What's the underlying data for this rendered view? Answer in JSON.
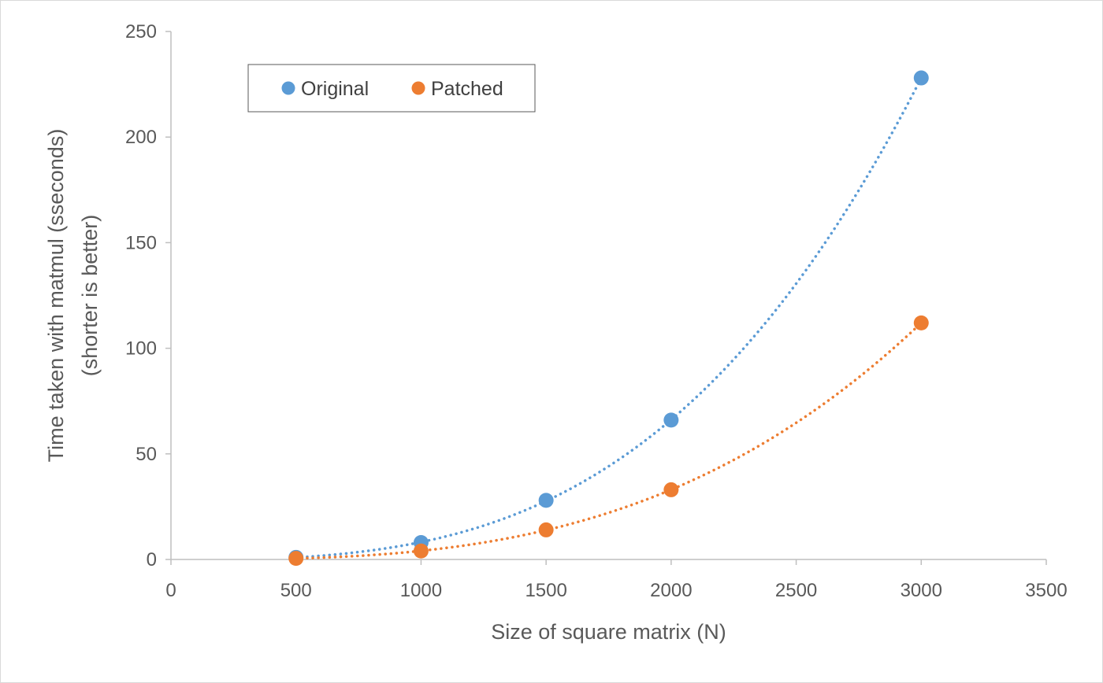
{
  "chart_data": {
    "type": "scatter",
    "title": "",
    "xlabel": "Size of square matrix (N)",
    "ylabel_lines": [
      "Time taken with matmul (sseconds)",
      "(shorter is better)"
    ],
    "xlim": [
      0,
      3500
    ],
    "ylim": [
      0,
      250
    ],
    "x_ticks": [
      0,
      500,
      1000,
      1500,
      2000,
      2500,
      3000,
      3500
    ],
    "y_ticks": [
      0,
      50,
      100,
      150,
      200,
      250
    ],
    "grid": false,
    "legend_position": "top-left",
    "trendline": "polynomial (dotted)",
    "series": [
      {
        "name": "Original",
        "color": "#5b9bd5",
        "x": [
          500,
          1000,
          1500,
          2000,
          3000
        ],
        "y": [
          1,
          8,
          28,
          66,
          228
        ]
      },
      {
        "name": "Patched",
        "color": "#ed7d31",
        "x": [
          500,
          1000,
          1500,
          2000,
          3000
        ],
        "y": [
          0.5,
          4,
          14,
          33,
          112
        ]
      }
    ]
  }
}
